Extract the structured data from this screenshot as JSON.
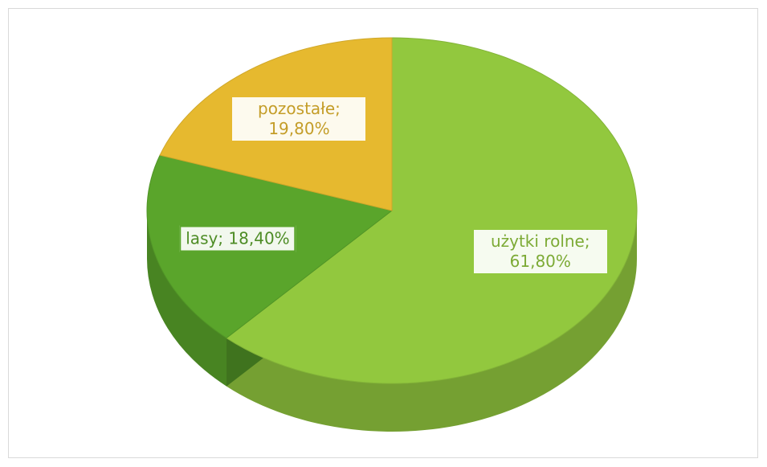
{
  "chart_data": {
    "type": "pie",
    "categories": [
      "użytki rolne",
      "lasy",
      "pozostałe"
    ],
    "values": [
      61.8,
      18.4,
      19.8
    ],
    "value_labels": [
      "użytki rolne; 61,80%",
      "lasy; 18,40%",
      "pozostałe; 19,80%"
    ],
    "colors": [
      "#92c83e",
      "#5aa52b",
      "#e6b92f"
    ]
  }
}
